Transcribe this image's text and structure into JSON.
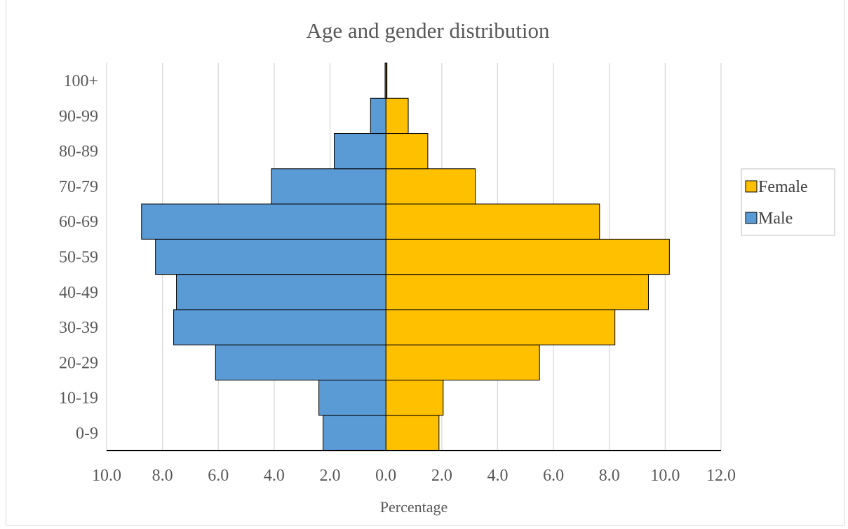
{
  "chart_data": {
    "type": "bar",
    "orientation": "horizontal",
    "subtype": "population-pyramid",
    "title": "Age and gender distribution",
    "xlabel": "Percentage",
    "ylabel": "",
    "categories": [
      "0-9",
      "10-19",
      "20-29",
      "30-39",
      "40-49",
      "50-59",
      "60-69",
      "70-79",
      "80-89",
      "90-99",
      "100+"
    ],
    "series": [
      {
        "name": "Female",
        "side": "right",
        "color": "#FFC000",
        "values": [
          1.9,
          2.05,
          5.5,
          8.2,
          9.4,
          10.15,
          7.65,
          3.2,
          1.5,
          0.8,
          0.02
        ]
      },
      {
        "name": "Male",
        "side": "left",
        "color": "#5B9BD5",
        "values": [
          2.25,
          2.4,
          6.1,
          7.6,
          7.5,
          8.25,
          8.75,
          4.1,
          1.85,
          0.55,
          0.03
        ]
      }
    ],
    "xlim": [
      -10,
      12
    ],
    "x_ticks": [
      -10,
      -8,
      -6,
      -4,
      -2,
      0,
      2,
      4,
      6,
      8,
      10,
      12
    ],
    "x_tick_labels": [
      "10.0",
      "8.0",
      "6.0",
      "4.0",
      "2.0",
      "0.0",
      "2.0",
      "4.0",
      "6.0",
      "8.0",
      "10.0",
      "12.0"
    ],
    "grid": "vertical",
    "legend_position": "right",
    "legend_order": [
      "Female",
      "Male"
    ]
  }
}
